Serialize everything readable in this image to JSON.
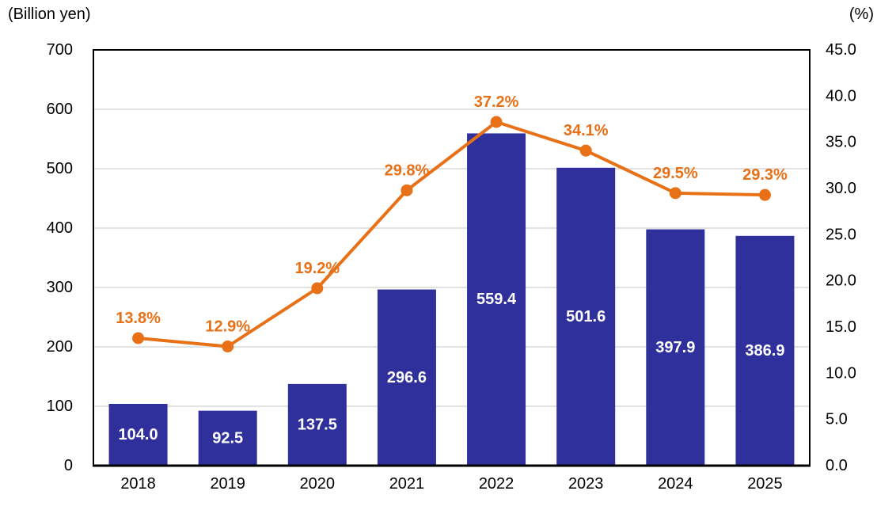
{
  "chart_data": {
    "type": "combo",
    "categories": [
      "2018",
      "2019",
      "2020",
      "2021",
      "2022",
      "2023",
      "2024",
      "2025"
    ],
    "series": [
      {
        "name": "amount-bars",
        "type": "bar",
        "axis": "left",
        "values": [
          104.0,
          92.5,
          137.5,
          296.6,
          559.4,
          501.6,
          397.9,
          386.9
        ],
        "labels": [
          "104.0",
          "92.5",
          "137.5",
          "296.6",
          "559.4",
          "501.6",
          "397.9",
          "386.9"
        ],
        "color": "#2F309C",
        "label_color": "#FFFFFF"
      },
      {
        "name": "ratio-line",
        "type": "line",
        "axis": "right",
        "values": [
          13.8,
          12.9,
          19.2,
          29.8,
          37.2,
          34.1,
          29.5,
          29.3
        ],
        "labels": [
          "13.8%",
          "12.9%",
          "19.2%",
          "29.8%",
          "37.2%",
          "34.1%",
          "29.5%",
          "29.3%"
        ],
        "color": "#E87017",
        "label_color": "#E87017"
      }
    ],
    "left_axis": {
      "unit": "(Billion yen)",
      "min": 0,
      "max": 700,
      "step": 100,
      "tick_labels": [
        "0",
        "100",
        "200",
        "300",
        "400",
        "500",
        "600",
        "700"
      ]
    },
    "right_axis": {
      "unit": "(%)",
      "min": 0,
      "max": 45,
      "step": 5,
      "tick_labels": [
        "0.0",
        "5.0",
        "10.0",
        "15.0",
        "20.0",
        "25.0",
        "30.0",
        "35.0",
        "40.0",
        "45.0"
      ]
    },
    "grid": {
      "horizontal": true,
      "color": "#D9D9D9"
    },
    "axis_color": "#000000",
    "background": "#FFFFFF",
    "legend": false,
    "title": ""
  }
}
